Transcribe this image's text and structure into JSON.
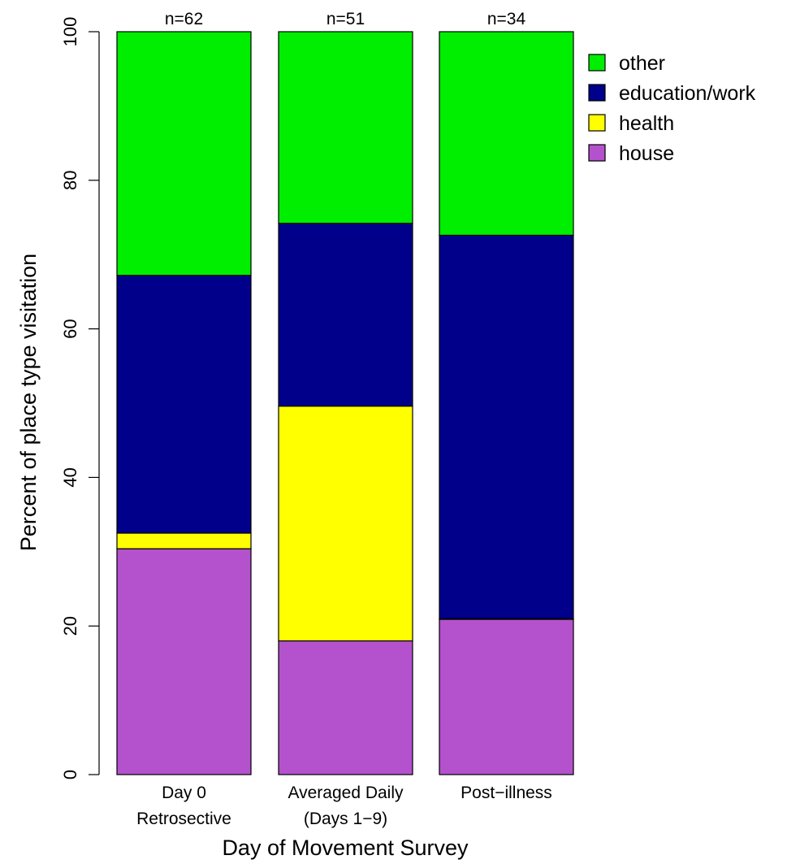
{
  "chart_data": {
    "type": "bar",
    "stacked": true,
    "categories": [
      [
        "Day 0",
        "Retrosective"
      ],
      [
        "Averaged Daily",
        "(Days 1−9)"
      ],
      [
        "Post−illness"
      ]
    ],
    "bar_annotations": [
      "n=62",
      "n=51",
      "n=34"
    ],
    "series": [
      {
        "name": "house",
        "color": "#b452cd",
        "values": [
          30.4,
          18.0,
          20.9
        ]
      },
      {
        "name": "health",
        "color": "#ffff00",
        "values": [
          2.1,
          31.6,
          0.1
        ]
      },
      {
        "name": "education/work",
        "color": "#00008b",
        "values": [
          34.7,
          24.6,
          51.6
        ]
      },
      {
        "name": "other",
        "color": "#00ee00",
        "values": [
          32.8,
          25.8,
          27.4
        ]
      }
    ],
    "legend_order": [
      "other",
      "education/work",
      "health",
      "house"
    ],
    "legend_position": "top-right",
    "xlabel": "Day of Movement Survey",
    "ylabel": "Percent of place type visitation",
    "ylim": [
      0,
      100
    ],
    "yticks": [
      "0",
      "20",
      "40",
      "60",
      "80",
      "100"
    ],
    "grid": false
  }
}
